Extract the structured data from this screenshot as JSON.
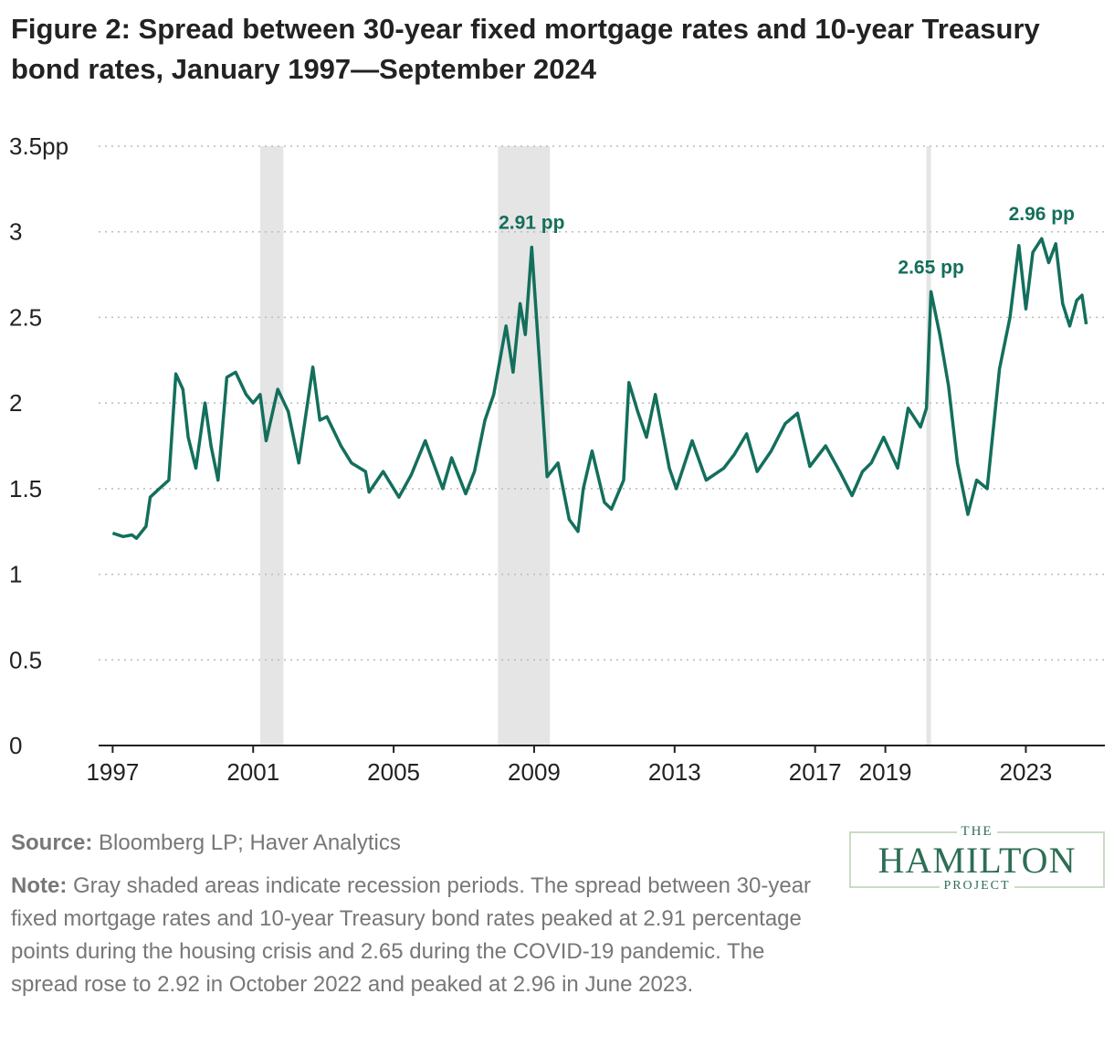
{
  "chart_data": {
    "type": "line",
    "title": "Figure 2: Spread between 30-year fixed mortgage rates and 10-year Treasury bond rates, January 1997—September 2024",
    "color": "#136f5c",
    "x": [
      1997.0,
      1997.3,
      1997.55,
      1997.68,
      1997.95,
      1998.07,
      1998.33,
      1998.6,
      1998.8,
      1999.0,
      1999.15,
      1999.37,
      1999.63,
      1999.8,
      2000.0,
      2000.25,
      2000.5,
      2000.8,
      2001.0,
      2001.2,
      2001.37,
      2001.7,
      2002.0,
      2002.3,
      2002.7,
      2002.9,
      2003.1,
      2003.5,
      2003.8,
      2004.2,
      2004.3,
      2004.7,
      2005.15,
      2005.5,
      2005.9,
      2006.4,
      2006.65,
      2007.05,
      2007.3,
      2007.6,
      2007.85,
      2008.2,
      2008.4,
      2008.6,
      2008.75,
      2008.93,
      2009.15,
      2009.37,
      2009.68,
      2010.0,
      2010.25,
      2010.4,
      2010.65,
      2011.0,
      2011.2,
      2011.55,
      2011.7,
      2011.95,
      2012.2,
      2012.45,
      2012.85,
      2013.05,
      2013.5,
      2013.9,
      2014.4,
      2014.7,
      2015.05,
      2015.35,
      2015.75,
      2016.15,
      2016.5,
      2016.85,
      2017.3,
      2017.7,
      2018.05,
      2018.35,
      2018.6,
      2018.95,
      2019.35,
      2019.65,
      2020.0,
      2020.17,
      2020.3,
      2020.55,
      2020.8,
      2021.05,
      2021.35,
      2021.6,
      2021.9,
      2022.25,
      2022.55,
      2022.8,
      2023.0,
      2023.2,
      2023.45,
      2023.65,
      2023.85,
      2024.05,
      2024.25,
      2024.45,
      2024.6,
      2024.72
    ],
    "values": [
      1.24,
      1.22,
      1.23,
      1.21,
      1.28,
      1.45,
      1.5,
      1.55,
      2.17,
      2.08,
      1.8,
      1.62,
      2.0,
      1.75,
      1.55,
      2.15,
      2.18,
      2.05,
      2.0,
      2.05,
      1.78,
      2.08,
      1.95,
      1.65,
      2.21,
      1.9,
      1.92,
      1.75,
      1.65,
      1.6,
      1.48,
      1.6,
      1.45,
      1.58,
      1.78,
      1.5,
      1.68,
      1.47,
      1.6,
      1.9,
      2.05,
      2.45,
      2.18,
      2.58,
      2.4,
      2.91,
      2.25,
      1.57,
      1.65,
      1.32,
      1.25,
      1.5,
      1.72,
      1.42,
      1.38,
      1.55,
      2.12,
      1.95,
      1.8,
      2.05,
      1.62,
      1.5,
      1.78,
      1.55,
      1.62,
      1.7,
      1.82,
      1.6,
      1.72,
      1.88,
      1.94,
      1.63,
      1.75,
      1.6,
      1.46,
      1.6,
      1.65,
      1.8,
      1.62,
      1.97,
      1.86,
      1.97,
      2.65,
      2.4,
      2.1,
      1.65,
      1.35,
      1.55,
      1.5,
      2.2,
      2.5,
      2.92,
      2.55,
      2.88,
      2.96,
      2.82,
      2.93,
      2.58,
      2.45,
      2.6,
      2.63,
      2.46
    ],
    "xlim": [
      1996.6,
      2025.25
    ],
    "xticks": [
      1997,
      2001,
      2005,
      2009,
      2013,
      2017,
      2019,
      2023
    ],
    "ylim": [
      0,
      3.5
    ],
    "yticks": [
      0,
      0.5,
      1,
      1.5,
      2,
      2.5,
      3,
      {
        "value": 3.5,
        "label": "3.5pp"
      }
    ],
    "grid": true,
    "shading": [
      [
        2001.2,
        2001.86
      ],
      [
        2007.97,
        2009.45
      ],
      [
        2020.17,
        2020.3
      ]
    ],
    "annotations": [
      {
        "text": "2.91 pp",
        "x": 2008.93,
        "y": 2.91
      },
      {
        "text": "2.65 pp",
        "x": 2020.3,
        "y": 2.65
      },
      {
        "text": "2.96 pp",
        "x": 2023.45,
        "y": 2.96
      }
    ]
  },
  "source": {
    "label": "Source:",
    "text": "Bloomberg LP; Haver Analytics"
  },
  "note": {
    "label": "Note:",
    "text": "Gray shaded areas indicate recession periods. The spread between 30-year fixed mortgage rates and 10-year Treasury bond rates peaked at 2.91 percentage points during the housing crisis and 2.65 during the COVID-19 pandemic. The spread rose to 2.92 in October 2022 and peaked at 2.96 in June 2023."
  },
  "logo": {
    "top": "THE",
    "main": "HAMILTON",
    "bottom": "PROJECT"
  }
}
